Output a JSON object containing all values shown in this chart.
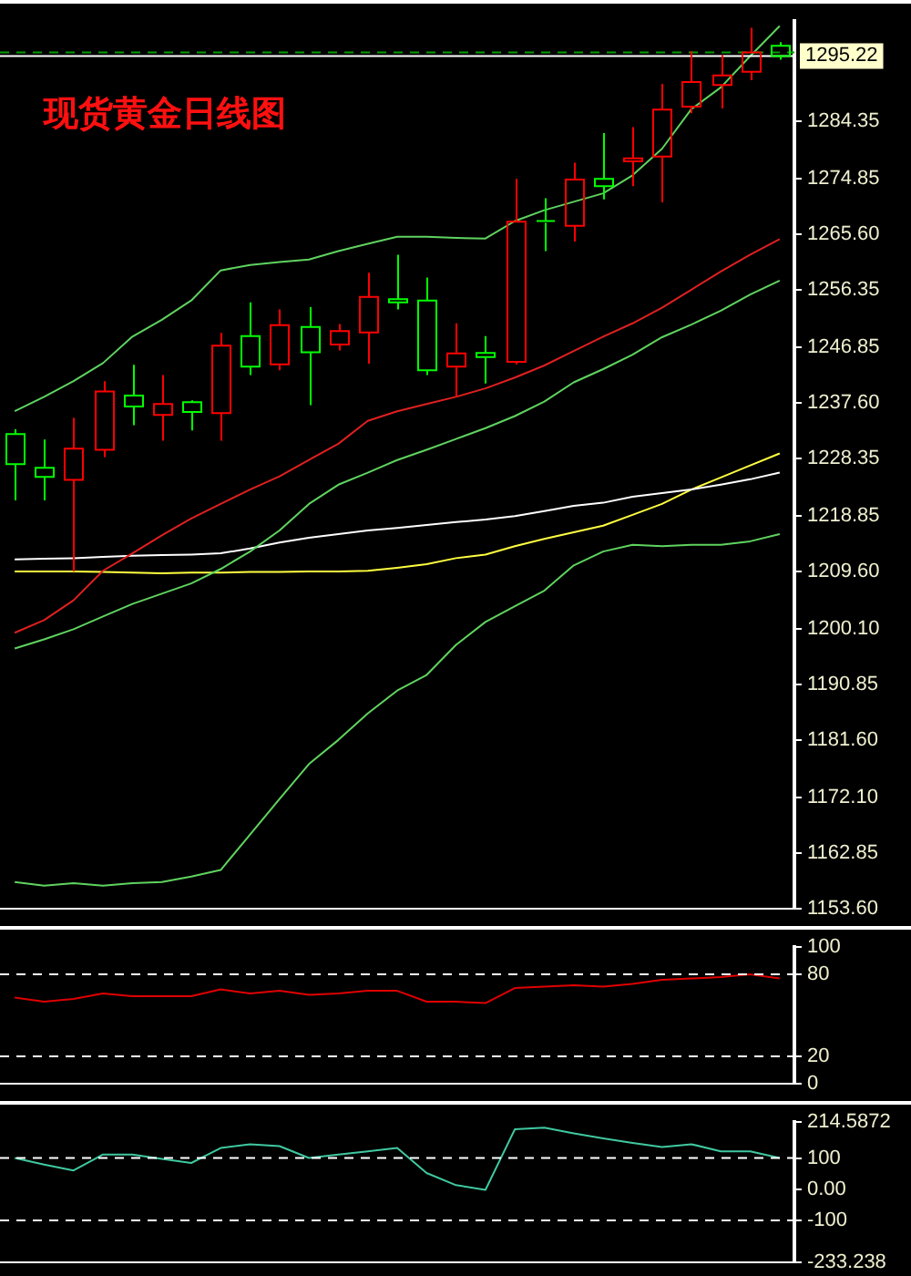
{
  "chart_data": [
    {
      "type": "candlestick",
      "title": "现货黄金日线图",
      "categories": [
        null,
        null,
        null,
        null,
        null,
        null,
        null,
        null,
        null,
        null,
        null,
        null,
        null,
        null,
        null,
        null,
        null,
        null,
        null,
        null,
        null,
        null,
        null,
        null,
        null,
        null,
        null
      ],
      "ohlc": [
        [
          1232.4,
          1233.2,
          1221.4,
          1227.4
        ],
        [
          1226.8,
          1231.5,
          1221.4,
          1225.3
        ],
        [
          1224.8,
          1235.1,
          1209.6,
          1230.0
        ],
        [
          1229.8,
          1241.2,
          1228.6,
          1239.5
        ],
        [
          1238.8,
          1243.9,
          1233.9,
          1237.0
        ],
        [
          1235.6,
          1242.2,
          1231.3,
          1237.4
        ],
        [
          1237.7,
          1238.0,
          1233.0,
          1236.1
        ],
        [
          1235.9,
          1249.2,
          1231.3,
          1247.1
        ],
        [
          1248.7,
          1254.3,
          1242.2,
          1243.6
        ],
        [
          1244.0,
          1253.1,
          1243.0,
          1250.5
        ],
        [
          1250.2,
          1253.5,
          1237.2,
          1246.0
        ],
        [
          1247.3,
          1250.7,
          1246.3,
          1249.5
        ],
        [
          1249.3,
          1259.2,
          1244.1,
          1255.2
        ],
        [
          1254.8,
          1262.2,
          1253.1,
          1254.3
        ],
        [
          1254.6,
          1258.4,
          1242.2,
          1243.0
        ],
        [
          1243.6,
          1250.8,
          1238.6,
          1245.8
        ],
        [
          1245.9,
          1248.7,
          1240.8,
          1245.2
        ],
        [
          1244.4,
          1274.8,
          1244.0,
          1267.7
        ],
        [
          1267.8,
          1271.6,
          1262.8,
          1267.5
        ],
        [
          1267.0,
          1277.5,
          1264.4,
          1274.7
        ],
        [
          1274.8,
          1282.4,
          1271.4,
          1273.6
        ],
        [
          1277.7,
          1283.4,
          1273.6,
          1278.2
        ],
        [
          1278.5,
          1290.6,
          1270.9,
          1286.3
        ],
        [
          1286.8,
          1296.0,
          1285.7,
          1290.9
        ],
        [
          1290.4,
          1295.4,
          1286.5,
          1292.0
        ],
        [
          1292.6,
          1299.9,
          1291.2,
          1295.8
        ],
        [
          1296.9,
          1297.5,
          1294.6,
          1295.22
        ]
      ],
      "colors": [
        "#00ff00",
        "#00ff00",
        "#ff0000",
        "#ff0000",
        "#00ff00",
        "#ff0000",
        "#00ff00",
        "#ff0000",
        "#00ff00",
        "#ff0000",
        "#00ff00",
        "#ff0000",
        "#ff0000",
        "#00ff00",
        "#00ff00",
        "#ff0000",
        "#00ff00",
        "#ff0000",
        "#00ff00",
        "#ff0000",
        "#00ff00",
        "#ff0000",
        "#ff0000",
        "#ff0000",
        "#ff0000",
        "#ff0000",
        "#00ff00"
      ],
      "series": [
        {
          "type": "line",
          "color": "#5fd35f",
          "values": [
            1236.2,
            1238.6,
            1241.2,
            1244.2,
            1248.6,
            1251.4,
            1254.6,
            1259.6,
            1260.5,
            1261.0,
            1261.4,
            1262.8,
            1264.0,
            1265.2,
            1265.2,
            1265.0,
            1264.9,
            1267.8,
            1269.6,
            1271.0,
            1272.4,
            1275.4,
            1279.8,
            1286.4,
            1290.0,
            1295.2,
            1300.2
          ]
        },
        {
          "type": "line",
          "color": "#e02020",
          "values": [
            1199.4,
            1201.5,
            1204.8,
            1209.7,
            1212.6,
            1215.6,
            1218.4,
            1220.8,
            1223.2,
            1225.4,
            1228.1,
            1230.8,
            1234.6,
            1236.2,
            1237.4,
            1238.6,
            1240.0,
            1241.8,
            1243.8,
            1246.2,
            1248.6,
            1250.8,
            1253.4,
            1256.4,
            1259.4,
            1262.2,
            1264.8
          ]
        },
        {
          "type": "line",
          "color": "#5fd35f",
          "values": [
            1196.8,
            1198.3,
            1200.0,
            1202.1,
            1204.2,
            1205.9,
            1207.6,
            1210.0,
            1212.9,
            1216.4,
            1220.8,
            1224.0,
            1226.0,
            1228.1,
            1229.8,
            1231.6,
            1233.4,
            1235.4,
            1237.8,
            1241.0,
            1243.2,
            1245.6,
            1248.5,
            1250.6,
            1252.9,
            1255.6,
            1257.9
          ]
        },
        {
          "type": "line",
          "color": "#5fd35f",
          "values": [
            1158.0,
            1157.4,
            1157.8,
            1157.4,
            1157.8,
            1158.0,
            1158.9,
            1160.0,
            1165.9,
            1171.8,
            1177.6,
            1181.6,
            1186.0,
            1189.8,
            1192.4,
            1197.4,
            1201.2,
            1203.8,
            1206.4,
            1210.6,
            1212.9,
            1214.0,
            1213.8,
            1214.0,
            1214.0,
            1214.6,
            1215.8
          ]
        },
        {
          "type": "line",
          "color": "#ffffff",
          "values": [
            1211.6,
            1211.7,
            1211.8,
            1212.0,
            1212.2,
            1212.3,
            1212.4,
            1212.6,
            1213.4,
            1214.4,
            1215.2,
            1215.8,
            1216.4,
            1216.8,
            1217.3,
            1217.8,
            1218.2,
            1218.8,
            1219.6,
            1220.5,
            1221.0,
            1222.0,
            1222.6,
            1223.2,
            1224.0,
            1224.9,
            1226.0
          ]
        },
        {
          "type": "line",
          "color": "#ffff40",
          "values": [
            1209.6,
            1209.6,
            1209.6,
            1209.5,
            1209.4,
            1209.3,
            1209.4,
            1209.4,
            1209.5,
            1209.5,
            1209.6,
            1209.6,
            1209.7,
            1210.2,
            1210.8,
            1211.8,
            1212.4,
            1213.8,
            1215.0,
            1216.1,
            1217.2,
            1219.0,
            1220.8,
            1223.2,
            1225.2,
            1227.2,
            1229.2
          ]
        }
      ],
      "ylim": [
        1153.6,
        1301
      ],
      "yticks": [
        {
          "value": 1153.6,
          "label": "1153.60"
        },
        {
          "value": 1162.85,
          "label": "1162.85"
        },
        {
          "value": 1172.1,
          "label": "1172.10"
        },
        {
          "value": 1181.6,
          "label": "1181.60"
        },
        {
          "value": 1190.85,
          "label": "1190.85"
        },
        {
          "value": 1200.1,
          "label": "1200.10"
        },
        {
          "value": 1209.6,
          "label": "1209.60"
        },
        {
          "value": 1218.85,
          "label": "1218.85"
        },
        {
          "value": 1228.35,
          "label": "1228.35"
        },
        {
          "value": 1237.6,
          "label": "1237.60"
        },
        {
          "value": 1246.85,
          "label": "1246.85"
        },
        {
          "value": 1256.35,
          "label": "1256.35"
        },
        {
          "value": 1265.6,
          "label": "1265.60"
        },
        {
          "value": 1274.85,
          "label": "1274.85"
        },
        {
          "value": 1284.35,
          "label": "1284.35"
        }
      ],
      "ref_lines": [
        {
          "axis": "y",
          "value": 1295.8,
          "color": "#00a000",
          "line_style": "dashed"
        },
        {
          "axis": "y",
          "value": 1295.22,
          "label": "1295.22",
          "color": "#ffffff",
          "line_style": "solid"
        }
      ],
      "tick_labels": "y",
      "legend": false,
      "grid": false
    },
    {
      "type": "line",
      "categories": [
        null,
        null,
        null,
        null,
        null,
        null,
        null,
        null,
        null,
        null,
        null,
        null,
        null,
        null,
        null,
        null,
        null,
        null,
        null,
        null,
        null,
        null,
        null,
        null,
        null,
        null,
        null
      ],
      "series": [
        {
          "color": "#e00000",
          "values": [
            63,
            60,
            62,
            66,
            64,
            64,
            64,
            69,
            66,
            68,
            65,
            66,
            68,
            68,
            60,
            60,
            59,
            70,
            71,
            72,
            71,
            73,
            76,
            77,
            78,
            80,
            77
          ]
        }
      ],
      "ylim": [
        0,
        100
      ],
      "yticks": [
        0,
        20,
        80,
        100
      ],
      "ref_lines": [
        {
          "axis": "y",
          "value": 80,
          "color": "#ffffff",
          "line_style": "dashed"
        },
        {
          "axis": "y",
          "value": 20,
          "color": "#ffffff",
          "line_style": "dashed"
        }
      ],
      "tick_labels": "y",
      "legend": false,
      "grid": false
    },
    {
      "type": "line",
      "categories": [
        null,
        null,
        null,
        null,
        null,
        null,
        null,
        null,
        null,
        null,
        null,
        null,
        null,
        null,
        null,
        null,
        null,
        null,
        null,
        null,
        null,
        null,
        null,
        null,
        null,
        null,
        null
      ],
      "series": [
        {
          "color": "#40c8a0",
          "values": [
            100,
            79,
            60,
            111,
            111,
            97,
            84,
            132,
            144,
            138,
            100,
            111,
            121,
            132,
            52,
            13,
            -2,
            192,
            197,
            179,
            163,
            148,
            135,
            144,
            121,
            121,
            100
          ]
        }
      ],
      "ylim": [
        -233.238,
        214.5872
      ],
      "yticks": [
        {
          "value": -233.238,
          "label": "-233.238"
        },
        -100,
        {
          "value": 0,
          "label": "0.00"
        },
        100,
        214.5872
      ],
      "ref_lines": [
        {
          "axis": "y",
          "value": 100,
          "color": "#ffffff",
          "line_style": "dashed"
        },
        {
          "axis": "y",
          "value": -100,
          "color": "#ffffff",
          "line_style": "dashed"
        }
      ],
      "tick_labels": "y",
      "legend": false,
      "grid": false
    }
  ]
}
